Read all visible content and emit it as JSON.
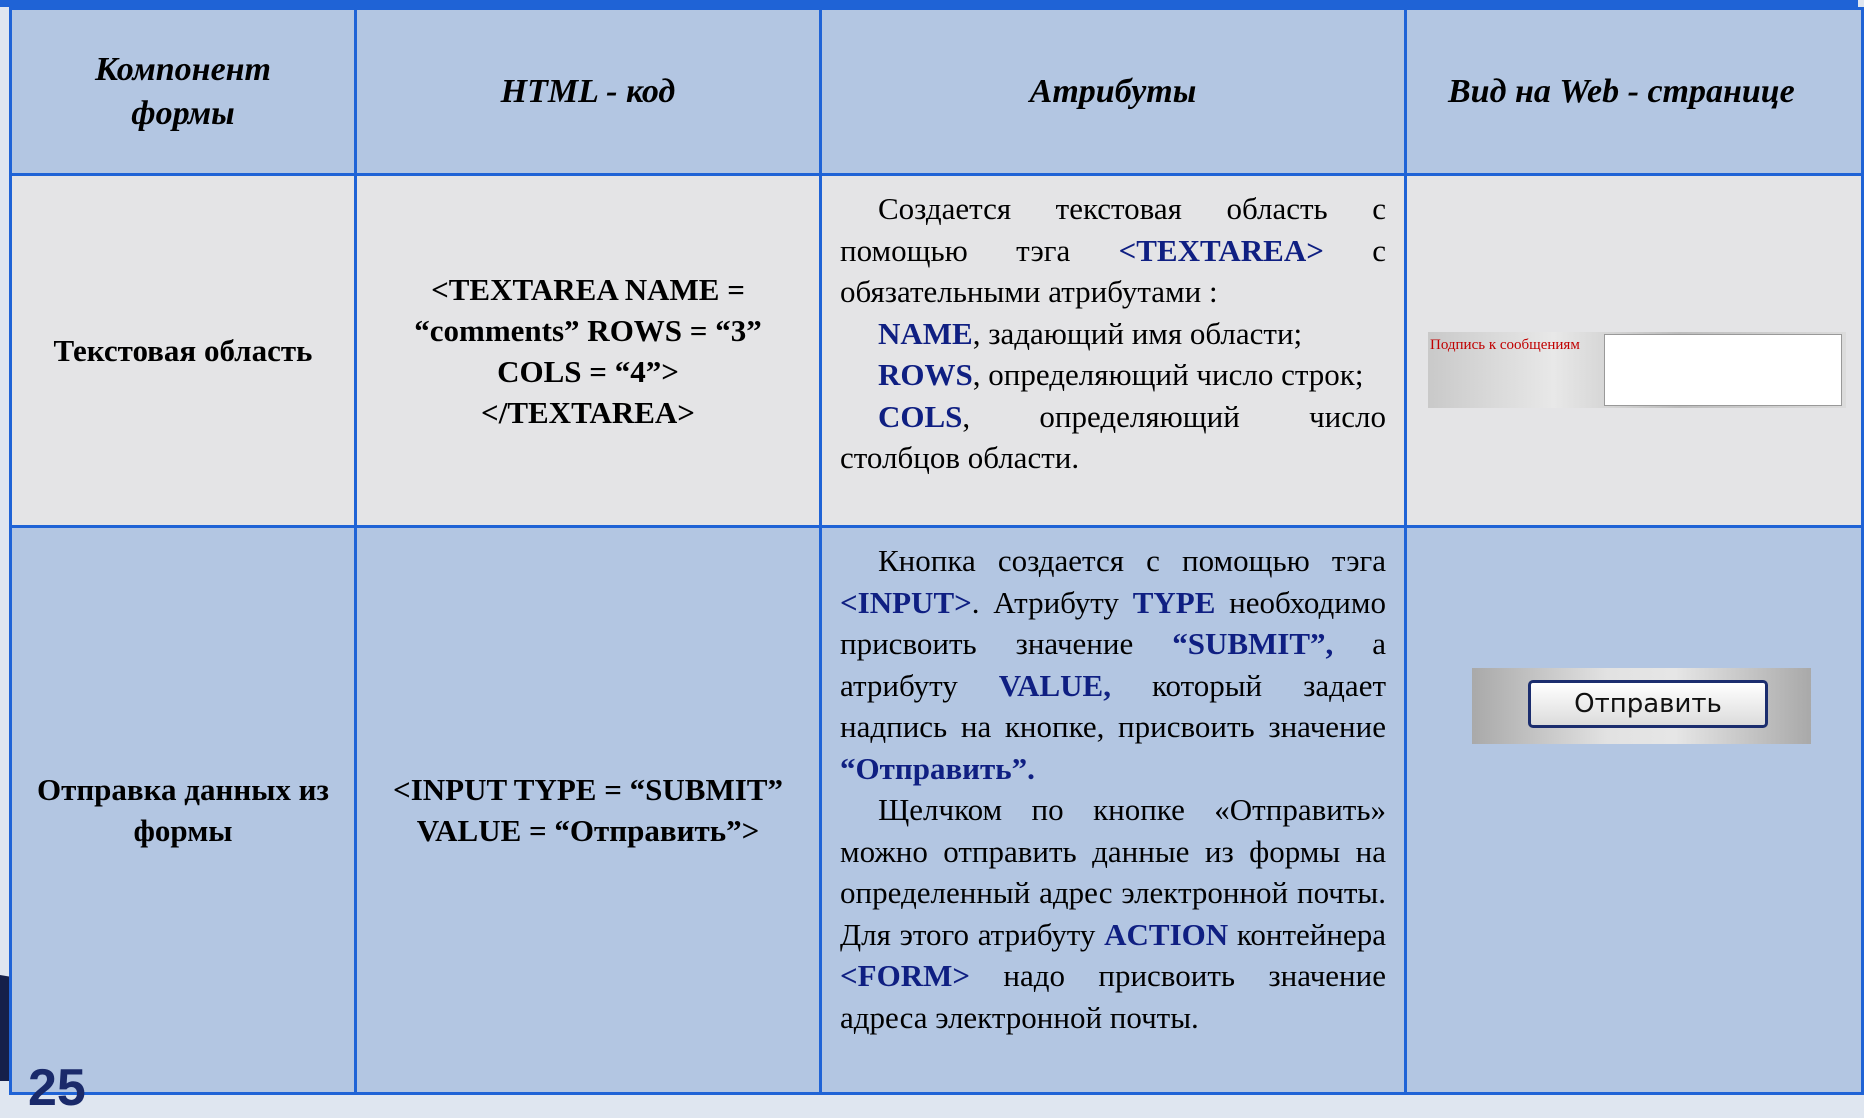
{
  "header": [
    "Компонент формы",
    "HTML - код",
    "Атрибуты",
    "Вид на Web - странице"
  ],
  "rows": [
    {
      "component": "Текстовая область",
      "code": "<TEXTAREA NAME = “comments” ROWS = “3” COLS = “4”> </TEXTAREA>",
      "attributes": [
        [
          "Создается текстовая область с помощью тэга ",
          "<TEXTAREA>",
          " с обязательными атрибутами :"
        ],
        [
          "NAME",
          ", задающий имя области;"
        ],
        [
          "ROWS",
          ", определяющий число строк;"
        ],
        [
          "COLS",
          ", определяющий число столбцов области."
        ]
      ],
      "preview": "Подпись к сообщениям"
    },
    {
      "component": "Отправка данных из формы",
      "code": "<INPUT TYPE = “SUBMIT”  VALUE = “Отправить”>",
      "attributes": [
        [
          "Кнопка создается с помощью тэга ",
          "<INPUT>",
          ". Атрибуту ",
          "TYPE",
          " необходимо присвоить значение ",
          "“SUBMIT”,",
          " а атрибуту ",
          "VALUE,",
          " который задает надпись на кнопке, присвоить значение ",
          "“Отправить”."
        ],
        [
          "Щелчком по кнопке «Отправить» можно отправить данные из формы на определенный адрес электронной почты. Для этого атрибуту ",
          "ACTION",
          " контейнера ",
          "<FORM>",
          " надо присвоить значение адреса электронной почты."
        ]
      ],
      "preview": "Отправить"
    }
  ],
  "slide_number": "25"
}
